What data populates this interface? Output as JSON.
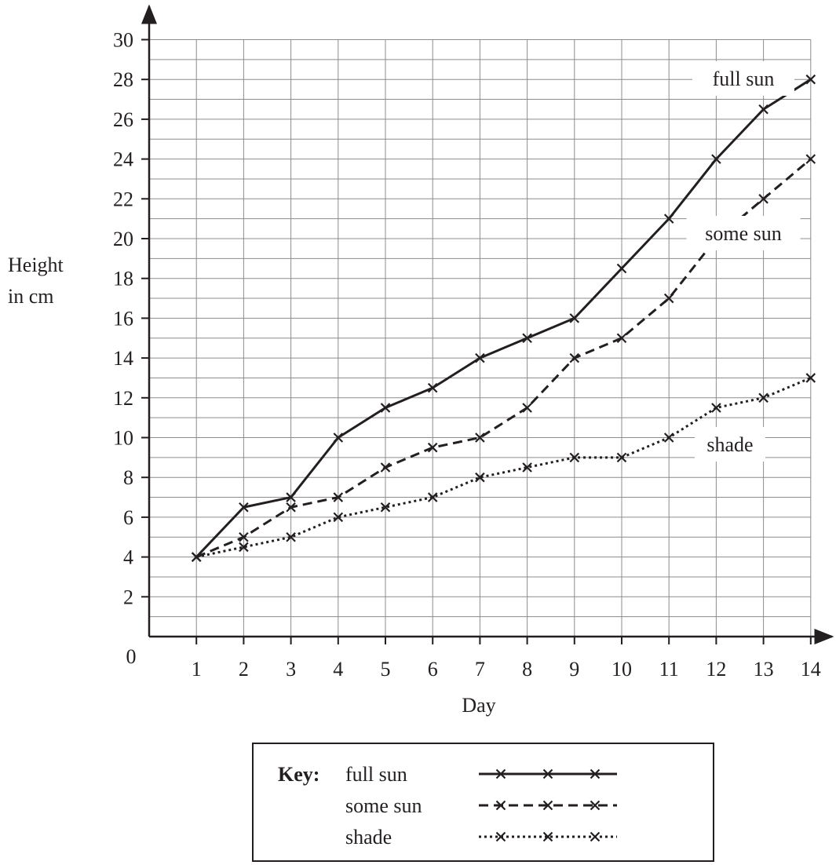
{
  "chart_data": {
    "type": "line",
    "ylabel_lines": [
      "Height",
      "in cm"
    ],
    "xlabel": "Day",
    "origin_label": "0",
    "x": [
      1,
      2,
      3,
      4,
      5,
      6,
      7,
      8,
      9,
      10,
      11,
      12,
      13,
      14
    ],
    "x_ticks": [
      "1",
      "2",
      "3",
      "4",
      "5",
      "6",
      "7",
      "8",
      "9",
      "10",
      "11",
      "12",
      "13",
      "14"
    ],
    "y_ticks": [
      "2",
      "4",
      "6",
      "8",
      "10",
      "12",
      "14",
      "16",
      "18",
      "20",
      "22",
      "24",
      "26",
      "28",
      "30"
    ],
    "xlim": [
      0,
      14
    ],
    "ylim": [
      0,
      30
    ],
    "grid": true,
    "series": [
      {
        "name": "full sun",
        "style": "solid",
        "values": [
          4,
          6.5,
          7,
          10,
          11.5,
          12.5,
          14,
          15,
          16,
          18.5,
          21,
          24,
          26.5,
          28
        ]
      },
      {
        "name": "some sun",
        "style": "dashed",
        "values": [
          4,
          5,
          6.5,
          7,
          8.5,
          9.5,
          10,
          11.5,
          14,
          15,
          17,
          20,
          22,
          24
        ]
      },
      {
        "name": "shade",
        "style": "dotted",
        "values": [
          4,
          4.5,
          5,
          6,
          6.5,
          7,
          8,
          8.5,
          9,
          9,
          10,
          11.5,
          12,
          13
        ]
      }
    ],
    "series_labels": [
      "full sun",
      "some sun",
      "shade"
    ],
    "legend": {
      "title": "Key:",
      "placement": "bottom-center",
      "entries": [
        "full sun",
        "some sun",
        "shade"
      ]
    },
    "colors": {
      "ink": "#231f20",
      "grid": "#8c8c8c"
    }
  }
}
